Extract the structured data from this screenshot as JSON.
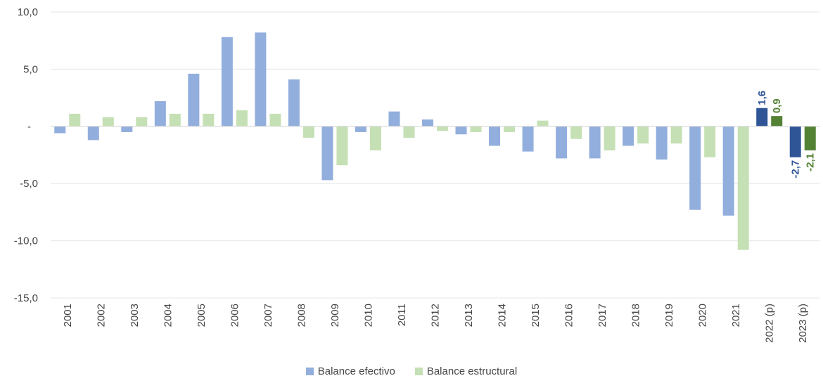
{
  "chart_data": {
    "type": "bar",
    "categories": [
      "2001",
      "2002",
      "2003",
      "2004",
      "2005",
      "2006",
      "2007",
      "2008",
      "2009",
      "2010",
      "2011",
      "2012",
      "2013",
      "2014",
      "2015",
      "2016",
      "2017",
      "2018",
      "2019",
      "2020",
      "2021",
      "2022 (p)",
      "2023 (p)"
    ],
    "series": [
      {
        "name": "Balance efectivo",
        "color": "#92AEDD",
        "highlight_color": "#2F5597",
        "values": [
          -0.6,
          -1.2,
          -0.5,
          2.2,
          4.6,
          7.8,
          8.2,
          4.1,
          -4.7,
          -0.5,
          1.3,
          0.6,
          -0.7,
          -1.7,
          -2.2,
          -2.8,
          -2.8,
          -1.7,
          -2.9,
          -7.3,
          -7.8,
          1.6,
          -2.7
        ]
      },
      {
        "name": "Balance estructural",
        "color": "#C5E0B4",
        "highlight_color": "#548235",
        "values": [
          1.1,
          0.8,
          0.8,
          1.1,
          1.1,
          1.4,
          1.1,
          -1.0,
          -3.4,
          -2.1,
          -1.0,
          -0.4,
          -0.5,
          -0.5,
          0.5,
          -1.1,
          -2.1,
          -1.5,
          -1.5,
          -2.7,
          -10.8,
          0.9,
          -2.1
        ]
      }
    ],
    "highlighted_categories": [
      "2022 (p)",
      "2023 (p)"
    ],
    "data_labels": {
      "2022 (p)": [
        "1,6",
        "0,9"
      ],
      "2023 (p)": [
        "-2,7",
        "-2,1"
      ]
    },
    "y_ticks": [
      {
        "value": 10,
        "label": "10,0"
      },
      {
        "value": 5,
        "label": "5,0"
      },
      {
        "value": 0,
        "label": "-"
      },
      {
        "value": -5,
        "label": "-5,0"
      },
      {
        "value": -10,
        "label": "-10,0"
      },
      {
        "value": -15,
        "label": "-15,0"
      }
    ],
    "ylim": [
      -15,
      10
    ],
    "grid": true,
    "legend_position": "bottom",
    "title": "",
    "xlabel": "",
    "ylabel": ""
  }
}
